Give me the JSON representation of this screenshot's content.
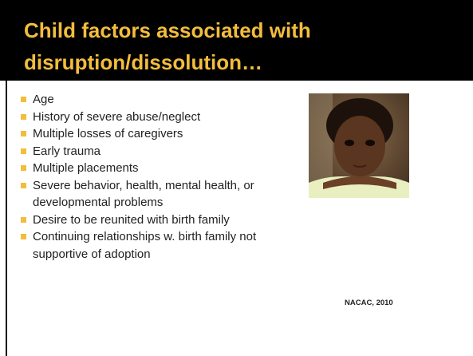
{
  "header": {
    "title": "Child factors associated with disruption/dissolution…"
  },
  "bullets": [
    "Age",
    "History of severe abuse/neglect",
    "Multiple losses of caregivers",
    "Early trauma",
    "Multiple placements",
    "Severe behavior, health, mental health, or developmental problems",
    "Desire to be reunited with birth family",
    "Continuing relationships w. birth family not supportive of adoption"
  ],
  "citation": "NACAC, 2010"
}
